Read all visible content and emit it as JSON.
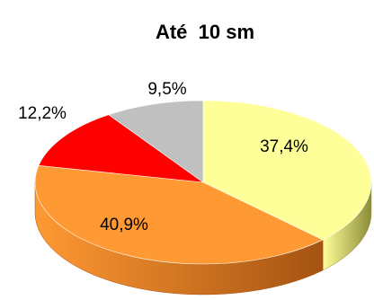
{
  "chart_data": {
    "type": "pie",
    "title": "Até  10 sm",
    "categories": [
      "",
      "",
      "",
      ""
    ],
    "values": [
      37.4,
      40.9,
      12.2,
      9.5
    ],
    "labels": [
      "37,4%",
      "40,9%",
      "12,2%",
      "9,5%"
    ],
    "colors": [
      "#FFFF99",
      "#FF9933",
      "#FF0000",
      "#C0C0C0"
    ],
    "side_colors": [
      "#8C8C3A",
      "#A55312",
      "#8C0000",
      "#6E6E6E"
    ],
    "three_d": true,
    "legend": "none"
  }
}
